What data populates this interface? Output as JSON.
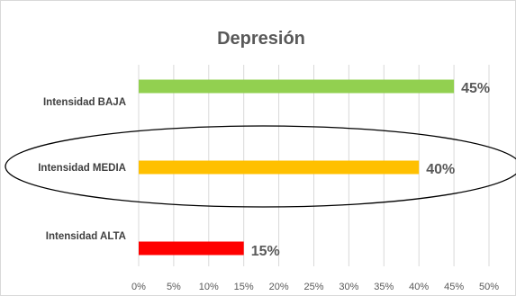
{
  "chart_data": {
    "type": "bar",
    "orientation": "horizontal",
    "title": "Depresión",
    "categories": [
      "Intensidad BAJA",
      "Intensidad MEDIA",
      "Intensidad ALTA"
    ],
    "values": [
      45,
      40,
      15
    ],
    "data_labels": [
      "45%",
      "40%",
      "15%"
    ],
    "colors": [
      "#92d050",
      "#ffc000",
      "#ff0000"
    ],
    "xlim": [
      0,
      50
    ],
    "x_ticks": [
      0,
      5,
      10,
      15,
      20,
      25,
      30,
      35,
      40,
      45,
      50
    ],
    "x_tick_labels": [
      "0%",
      "5%",
      "10%",
      "15%",
      "20%",
      "25%",
      "30%",
      "35%",
      "40%",
      "45%",
      "50%"
    ],
    "xlabel": "",
    "ylabel": "",
    "grid": "vertical",
    "legend": "none",
    "annotation": "ellipse around Intensidad MEDIA"
  }
}
